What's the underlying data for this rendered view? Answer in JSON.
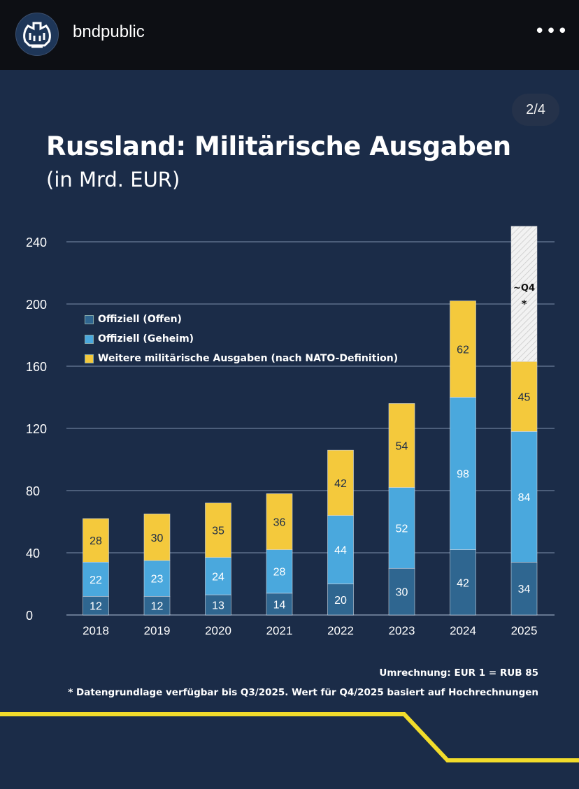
{
  "post": {
    "username": "bndpublic",
    "more_label": "•••",
    "page_indicator": "2/4"
  },
  "colors": {
    "offen": "#2f6690",
    "geheim": "#4aa8dd",
    "weitere": "#f4c93c",
    "background": "#1b2c48",
    "accent_line": "#f2dc2b"
  },
  "chart_data": {
    "type": "bar",
    "stacked": true,
    "title": "Russland: Militärische Ausgaben",
    "subtitle": "(in Mrd. EUR)",
    "categories": [
      "2018",
      "2019",
      "2020",
      "2021",
      "2022",
      "2023",
      "2024",
      "2025"
    ],
    "series": [
      {
        "name": "Offiziell (Offen)",
        "values": [
          12,
          12,
          13,
          14,
          20,
          30,
          42,
          34
        ]
      },
      {
        "name": "Offiziell (Geheim)",
        "values": [
          22,
          23,
          24,
          28,
          44,
          52,
          98,
          84
        ]
      },
      {
        "name": "Weitere militärische Ausgaben (nach NATO-Definition)",
        "values": [
          28,
          30,
          35,
          36,
          42,
          54,
          62,
          45
        ]
      },
      {
        "name": "~Q4 *",
        "values": [
          0,
          0,
          0,
          0,
          0,
          0,
          0,
          87
        ],
        "projected": true
      }
    ],
    "yticks": [
      0,
      40,
      80,
      120,
      160,
      200,
      240
    ],
    "ylim": [
      0,
      250
    ],
    "grid": true,
    "legend": "top-left",
    "projection_label": "~Q4",
    "projection_mark": "*",
    "notes": [
      "Umrechnung: EUR 1 = RUB 85",
      "* Datengrundlage verfügbar bis Q3/2025. Wert für Q4/2025 basiert auf Hochrechnungen"
    ]
  }
}
